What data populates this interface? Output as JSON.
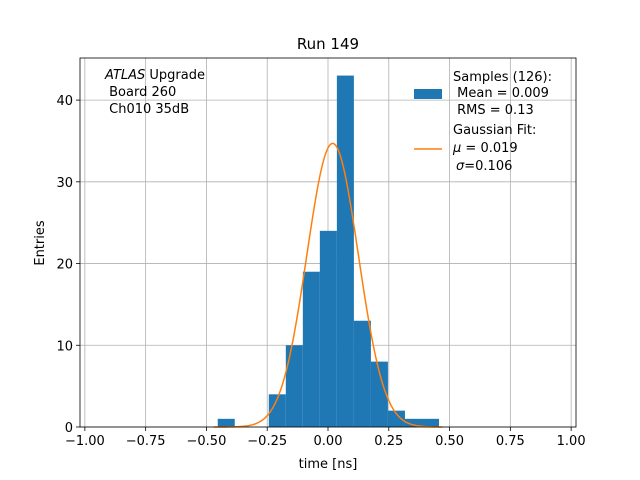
{
  "chart_data": {
    "type": "bar",
    "title": "Run 149",
    "xlabel": "time [ns]",
    "ylabel": "Entries",
    "xlim": [
      -1.02,
      1.02
    ],
    "ylim": [
      0,
      45.15
    ],
    "xticks": [
      -1.0,
      -0.75,
      -0.5,
      -0.25,
      0.0,
      0.25,
      0.5,
      0.75,
      1.0
    ],
    "xtick_labels": [
      "−1.00",
      "−0.75",
      "−0.50",
      "−0.25",
      "0.00",
      "0.25",
      "0.50",
      "0.75",
      "1.00"
    ],
    "yticks": [
      0,
      10,
      20,
      30,
      40
    ],
    "ytick_labels": [
      "0",
      "10",
      "20",
      "30",
      "40"
    ],
    "grid": true,
    "legend_position": "top-right",
    "annotation": {
      "line1_italic": "ATLAS",
      "line1_rest": " Upgrade",
      "line2": " Board 260",
      "line3": " Ch010 35dB"
    },
    "legend": {
      "samples": {
        "line1": "Samples (126):",
        "line2": " Mean = 0.009",
        "line3": " RMS = 0.13",
        "color": "#1f77b4"
      },
      "fit": {
        "line1": "Gaussian Fit:",
        "line2_symbol": "μ",
        "line2_value": " = 0.019",
        "line3_symbol": "σ",
        "line3_value": "=0.106",
        "color": "#ff7f0e"
      }
    },
    "series": [
      {
        "kind": "histogram",
        "color": "#1f77b4",
        "bin_edges": [
          -0.4535,
          -0.3835,
          -0.3135,
          -0.2435,
          -0.1735,
          -0.1035,
          -0.0335,
          0.0365,
          0.1065,
          0.1765,
          0.2465,
          0.3165,
          0.3865,
          0.4565
        ],
        "counts": [
          1,
          0,
          0,
          4,
          10,
          19,
          24,
          43,
          13,
          8,
          2,
          1,
          1
        ]
      },
      {
        "kind": "gaussian_fit",
        "color": "#ff7f0e",
        "mu": 0.019,
        "sigma": 0.106,
        "amplitude": 34.7,
        "x_range": [
          -0.47,
          0.47
        ]
      }
    ]
  }
}
